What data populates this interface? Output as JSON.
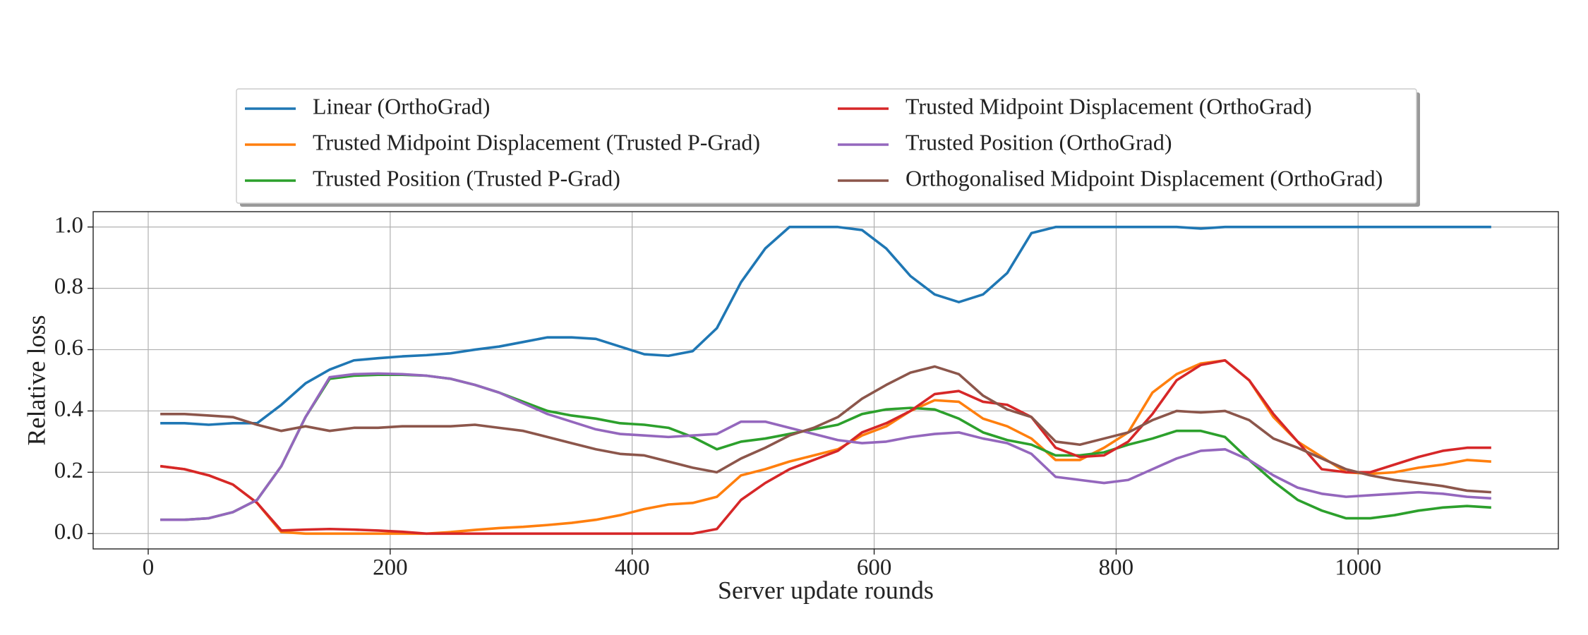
{
  "chart_data": {
    "type": "line",
    "xlabel": "Server update rounds",
    "ylabel": "Relative loss",
    "x": [
      10,
      30,
      50,
      70,
      90,
      110,
      130,
      150,
      170,
      190,
      210,
      230,
      250,
      270,
      290,
      310,
      330,
      350,
      370,
      390,
      410,
      430,
      450,
      470,
      490,
      510,
      530,
      550,
      570,
      590,
      610,
      630,
      650,
      670,
      690,
      710,
      730,
      750,
      770,
      790,
      810,
      830,
      850,
      870,
      890,
      910,
      930,
      950,
      970,
      990,
      1010,
      1030,
      1050,
      1070,
      1090,
      1110
    ],
    "series": [
      {
        "name": "Linear (OrthoGrad)",
        "color": "#1f77b4",
        "values": [
          0.36,
          0.36,
          0.355,
          0.36,
          0.36,
          0.42,
          0.49,
          0.535,
          0.565,
          0.572,
          0.578,
          0.582,
          0.588,
          0.6,
          0.61,
          0.625,
          0.64,
          0.64,
          0.635,
          0.61,
          0.585,
          0.58,
          0.595,
          0.67,
          0.82,
          0.93,
          1.0,
          1.0,
          1.0,
          0.99,
          0.93,
          0.84,
          0.78,
          0.755,
          0.78,
          0.85,
          0.98,
          1.0,
          1.0,
          1.0,
          1.0,
          1.0,
          1.0,
          0.995,
          1.0,
          1.0,
          1.0,
          1.0,
          1.0,
          1.0,
          1.0,
          1.0,
          1.0,
          1.0,
          1.0,
          1.0
        ]
      },
      {
        "name": "Trusted Midpoint Displacement (Trusted P-Grad)",
        "color": "#ff7f0e",
        "values": [
          0.22,
          0.21,
          0.19,
          0.16,
          0.1,
          0.005,
          0,
          0,
          0,
          0,
          0,
          0,
          0.005,
          0.012,
          0.018,
          0.022,
          0.028,
          0.035,
          0.045,
          0.06,
          0.08,
          0.095,
          0.1,
          0.12,
          0.19,
          0.21,
          0.235,
          0.255,
          0.275,
          0.32,
          0.35,
          0.4,
          0.435,
          0.43,
          0.375,
          0.35,
          0.31,
          0.24,
          0.24,
          0.28,
          0.33,
          0.46,
          0.52,
          0.555,
          0.565,
          0.5,
          0.38,
          0.3,
          0.25,
          0.2,
          0.195,
          0.2,
          0.215,
          0.225,
          0.24,
          0.235
        ]
      },
      {
        "name": "Trusted Position (Trusted P-Grad)",
        "color": "#2ca02c",
        "values": [
          0.045,
          0.045,
          0.05,
          0.07,
          0.11,
          0.22,
          0.38,
          0.505,
          0.515,
          0.518,
          0.518,
          0.515,
          0.505,
          0.485,
          0.46,
          0.43,
          0.4,
          0.385,
          0.375,
          0.36,
          0.355,
          0.345,
          0.315,
          0.275,
          0.3,
          0.31,
          0.325,
          0.34,
          0.355,
          0.39,
          0.405,
          0.41,
          0.405,
          0.375,
          0.33,
          0.305,
          0.29,
          0.255,
          0.255,
          0.265,
          0.29,
          0.31,
          0.335,
          0.335,
          0.315,
          0.24,
          0.17,
          0.11,
          0.075,
          0.05,
          0.05,
          0.06,
          0.075,
          0.085,
          0.09,
          0.085
        ]
      },
      {
        "name": "Trusted Midpoint Displacement (OrthoGrad)",
        "color": "#d62728",
        "values": [
          0.22,
          0.21,
          0.19,
          0.16,
          0.1,
          0.01,
          0.013,
          0.015,
          0.013,
          0.01,
          0.006,
          0,
          0,
          0,
          0,
          0,
          0,
          0,
          0,
          0,
          0,
          0,
          0,
          0.015,
          0.11,
          0.165,
          0.21,
          0.24,
          0.27,
          0.33,
          0.36,
          0.4,
          0.455,
          0.465,
          0.43,
          0.42,
          0.38,
          0.28,
          0.25,
          0.255,
          0.3,
          0.39,
          0.5,
          0.55,
          0.565,
          0.5,
          0.39,
          0.3,
          0.21,
          0.2,
          0.2,
          0.225,
          0.25,
          0.27,
          0.28,
          0.28
        ]
      },
      {
        "name": "Trusted Position (OrthoGrad)",
        "color": "#9467bd",
        "values": [
          0.045,
          0.045,
          0.05,
          0.07,
          0.11,
          0.22,
          0.38,
          0.51,
          0.52,
          0.522,
          0.52,
          0.515,
          0.505,
          0.485,
          0.46,
          0.425,
          0.39,
          0.365,
          0.34,
          0.325,
          0.32,
          0.315,
          0.32,
          0.325,
          0.365,
          0.365,
          0.345,
          0.325,
          0.305,
          0.295,
          0.3,
          0.315,
          0.325,
          0.33,
          0.31,
          0.295,
          0.26,
          0.185,
          0.175,
          0.165,
          0.175,
          0.21,
          0.245,
          0.27,
          0.275,
          0.24,
          0.19,
          0.15,
          0.13,
          0.12,
          0.125,
          0.13,
          0.135,
          0.13,
          0.12,
          0.115
        ]
      },
      {
        "name": "Orthogonalised Midpoint Displacement (OrthoGrad)",
        "color": "#8c564b",
        "values": [
          0.39,
          0.39,
          0.385,
          0.38,
          0.355,
          0.335,
          0.35,
          0.335,
          0.345,
          0.345,
          0.35,
          0.35,
          0.35,
          0.355,
          0.345,
          0.335,
          0.315,
          0.295,
          0.275,
          0.26,
          0.255,
          0.235,
          0.215,
          0.2,
          0.245,
          0.28,
          0.32,
          0.345,
          0.38,
          0.44,
          0.485,
          0.525,
          0.545,
          0.52,
          0.45,
          0.405,
          0.38,
          0.3,
          0.29,
          0.31,
          0.33,
          0.37,
          0.4,
          0.395,
          0.4,
          0.37,
          0.31,
          0.28,
          0.245,
          0.21,
          0.19,
          0.175,
          0.165,
          0.155,
          0.14,
          0.135
        ]
      }
    ],
    "xlim": [
      -45.5,
      1165.5
    ],
    "ylim": [
      -0.05,
      1.05
    ],
    "xticks": [
      0,
      200,
      400,
      600,
      800,
      1000
    ],
    "yticks": [
      {
        "value": 0,
        "label": "0.0"
      },
      0.2,
      0.4,
      0.6,
      0.8,
      {
        "value": 1,
        "label": "1.0"
      }
    ],
    "grid": true,
    "legend": "upper center"
  }
}
